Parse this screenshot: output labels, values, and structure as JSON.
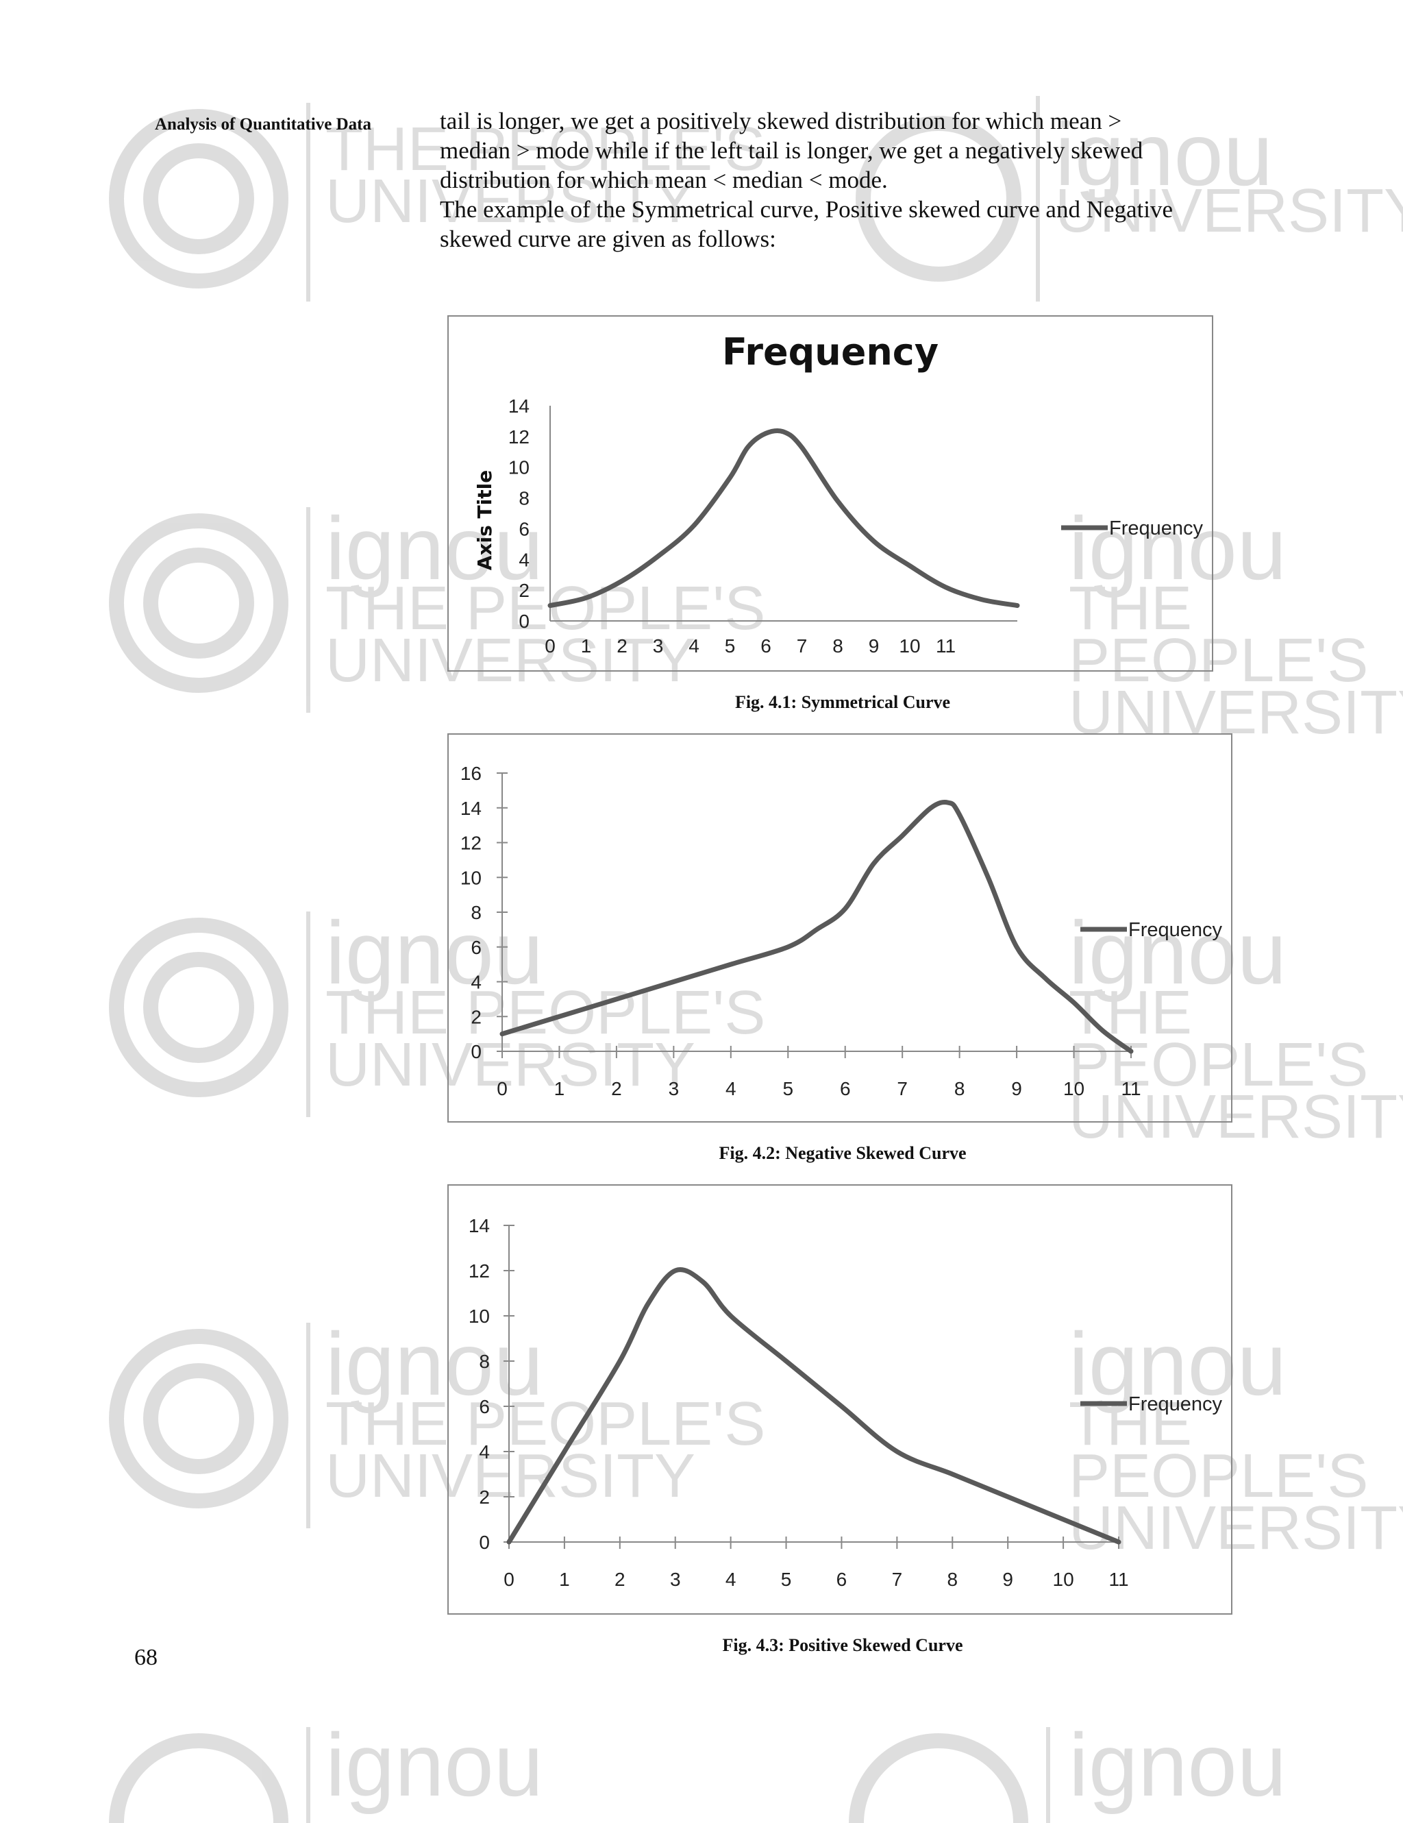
{
  "watermark": {
    "brand": "ignou",
    "line1": "THE PEOPLE'S",
    "line2": "UNIVERSITY"
  },
  "header": {
    "section_title": "Analysis of Quantitative Data"
  },
  "body": {
    "line1": "tail is longer, we get a positively skewed distribution for which mean >",
    "line2": "median > mode while if the left tail is longer, we get a negatively skewed",
    "line3": "distribution for which mean < median < mode.",
    "line4": "The example of the Symmetrical curve, Positive skewed curve and Negative",
    "line5": "skewed curve are given as follows:"
  },
  "figures": {
    "fig1_caption": "Fig. 4.1: Symmetrical Curve",
    "fig2_caption": "Fig. 4.2: Negative Skewed Curve",
    "fig3_caption": "Fig. 4.3: Positive Skewed Curve"
  },
  "page_number": "68",
  "chart_data": [
    {
      "type": "line",
      "title": "Frequency",
      "xlabel": "",
      "ylabel": "Axis Title",
      "legend": [
        "Frequency"
      ],
      "legend_position": "right",
      "x_ticks": [
        "0",
        "1",
        "2",
        "3",
        "4",
        "5",
        "6",
        "7",
        "8",
        "9",
        "10",
        "11"
      ],
      "xlim": [
        0,
        13
      ],
      "ylim": [
        0,
        14
      ],
      "y_ticks": [
        0,
        2,
        4,
        6,
        8,
        10,
        12,
        14
      ],
      "color": "#595959",
      "series": [
        {
          "name": "Frequency",
          "x": [
            0,
            1,
            2,
            3,
            4,
            5,
            5.5,
            6,
            6.5,
            7,
            8,
            9,
            10,
            11,
            12,
            13
          ],
          "values": [
            1,
            1.5,
            2.6,
            4.2,
            6.2,
            9.3,
            11.3,
            12.2,
            12.3,
            11.3,
            7.8,
            5.2,
            3.6,
            2.2,
            1.4,
            1.0
          ]
        }
      ]
    },
    {
      "type": "line",
      "title": "",
      "legend": [
        "Frequency"
      ],
      "legend_position": "right",
      "x_ticks": [
        "0",
        "1",
        "2",
        "3",
        "4",
        "5",
        "6",
        "7",
        "8",
        "9",
        "10",
        "11"
      ],
      "xlim": [
        0,
        11
      ],
      "ylim": [
        0,
        16
      ],
      "y_ticks": [
        0,
        2,
        4,
        6,
        8,
        10,
        12,
        14,
        16
      ],
      "color": "#595959",
      "series": [
        {
          "name": "Frequency",
          "x": [
            0,
            1,
            2,
            3,
            4,
            5,
            5.5,
            6,
            6.5,
            7,
            7.5,
            7.8,
            8,
            8.5,
            9,
            9.5,
            10,
            10.5,
            11
          ],
          "values": [
            1,
            2,
            3,
            4,
            5,
            6,
            7,
            8.2,
            10.8,
            12.4,
            14,
            14.3,
            13.6,
            10,
            6,
            4.2,
            2.8,
            1.2,
            0
          ]
        }
      ]
    },
    {
      "type": "line",
      "title": "",
      "legend": [
        "Frequency"
      ],
      "legend_position": "right",
      "x_ticks": [
        "0",
        "1",
        "2",
        "3",
        "4",
        "5",
        "6",
        "7",
        "8",
        "9",
        "10",
        "11"
      ],
      "xlim": [
        0,
        11
      ],
      "ylim": [
        0,
        14
      ],
      "y_ticks": [
        0,
        2,
        4,
        6,
        8,
        10,
        12,
        14
      ],
      "color": "#595959",
      "series": [
        {
          "name": "Frequency",
          "x": [
            0,
            1,
            2,
            2.5,
            3,
            3.5,
            4,
            5,
            6,
            7,
            8,
            9,
            10,
            11
          ],
          "values": [
            0,
            4,
            8,
            10.5,
            12,
            11.5,
            10,
            8,
            6,
            4,
            3,
            2,
            1,
            0
          ]
        }
      ]
    }
  ]
}
